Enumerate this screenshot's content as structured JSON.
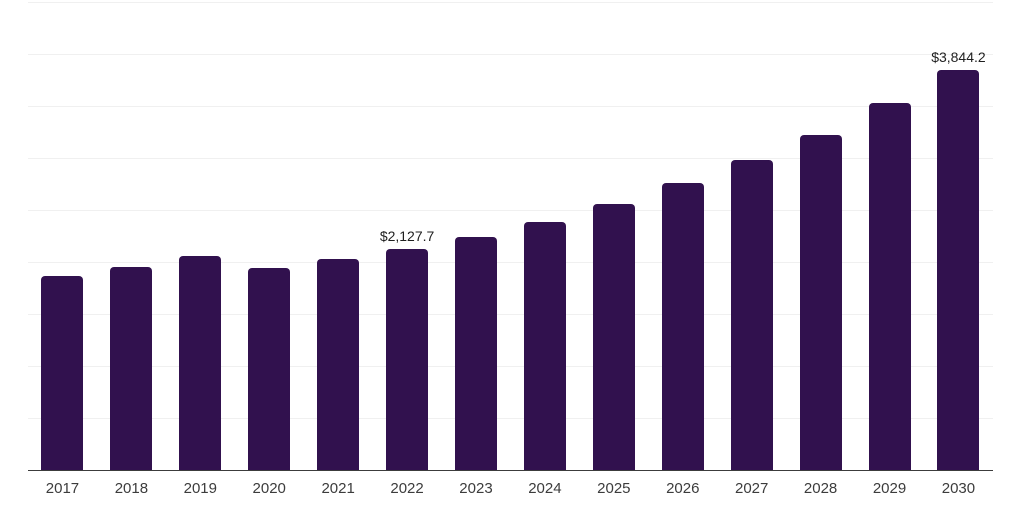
{
  "colors": {
    "background": "#ffffff",
    "bar": "#31114e",
    "gridline": "#f0f0f0",
    "axis_line": "#3c3c3c",
    "tick_label": "#3c3c3c",
    "data_label": "#1f1f1f"
  },
  "chart_data": {
    "type": "bar",
    "title": "",
    "xlabel": "",
    "ylabel": "",
    "categories": [
      "2017",
      "2018",
      "2019",
      "2020",
      "2021",
      "2022",
      "2023",
      "2024",
      "2025",
      "2026",
      "2027",
      "2028",
      "2029",
      "2030"
    ],
    "values": [
      1868,
      1955,
      2061,
      1940,
      2030,
      2127.7,
      2242,
      2386,
      2554,
      2762,
      2980,
      3224,
      3526,
      3844.2
    ],
    "data_labels": [
      "",
      "",
      "",
      "",
      "",
      "$2,127.7",
      "",
      "",
      "",
      "",
      "",
      "",
      "",
      "$3,844.2"
    ],
    "ylim": [
      0,
      4500
    ],
    "gridline_interval": 500,
    "grid": "horizontal",
    "legend": "none",
    "y_axis_labels_visible": false
  }
}
